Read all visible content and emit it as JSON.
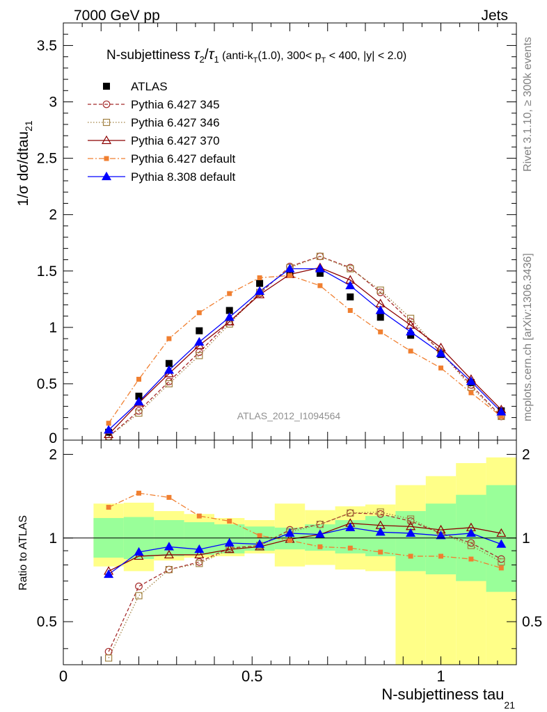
{
  "header": {
    "left": "7000 GeV pp",
    "right": "Jets"
  },
  "side_labels": {
    "rivet": "Rivet 3.1.10, ≥ 300k events",
    "mcplots": "mcplots.cern.ch [arXiv:1306.3436]"
  },
  "watermark": "ATLAS_2012_I1094564",
  "chart_data": [
    {
      "type": "line",
      "panel": "main",
      "title": "N-subjettiness τ2/τ1 (anti-kT(1.0), 300< pT < 400, |y| < 2.0)",
      "title_parts": {
        "lead": "N-subjettiness ",
        "tau": "τ",
        "sub2": "2",
        "slash": "/",
        "sub1": "1",
        "cond_a": " (anti-k",
        "subT": "T",
        "cond_b": "(1.0), 300< p",
        "cond_c": " < 400, |y| < 2.0)"
      },
      "ylabel": "1/σ dσ/dtau21",
      "ylabel_parts": {
        "main": "1/σ dσ/dtau",
        "sub": "21"
      },
      "xlim": [
        0,
        1.2
      ],
      "ylim": [
        0,
        3.7
      ],
      "yticks": [
        0,
        0.5,
        1,
        1.5,
        2,
        2.5,
        3,
        3.5
      ],
      "ytick_labels": [
        "0",
        "0.5",
        "1",
        "1.5",
        "2",
        "2.5",
        "3",
        "3.5"
      ],
      "x": [
        0.12,
        0.2,
        0.28,
        0.36,
        0.44,
        0.52,
        0.6,
        0.68,
        0.76,
        0.84,
        0.92,
        1.0,
        1.08,
        1.16
      ],
      "legend_position": "top-left",
      "series": [
        {
          "name": "ATLAS",
          "color": "#000000",
          "marker": "square-filled",
          "line": "none",
          "values": [
            0.07,
            0.39,
            0.68,
            0.97,
            1.15,
            1.39,
            1.49,
            1.48,
            1.27,
            1.09,
            0.93,
            0.76,
            0.51,
            0.26
          ]
        },
        {
          "name": "Pythia 6.427 345",
          "color": "#a52a2a",
          "marker": "circle-open",
          "line": "dashed",
          "values": [
            0.03,
            0.26,
            0.52,
            0.78,
            1.05,
            1.3,
            1.54,
            1.63,
            1.53,
            1.31,
            1.05,
            0.78,
            0.49,
            0.21
          ]
        },
        {
          "name": "Pythia 6.427 346",
          "color": "#a08040",
          "marker": "square-open",
          "line": "dotted",
          "values": [
            0.03,
            0.24,
            0.5,
            0.75,
            1.03,
            1.31,
            1.53,
            1.63,
            1.52,
            1.33,
            1.08,
            0.78,
            0.47,
            0.21
          ]
        },
        {
          "name": "Pythia 6.427 370",
          "color": "#8b0000",
          "marker": "triangle-open",
          "line": "solid",
          "values": [
            0.05,
            0.33,
            0.59,
            0.84,
            1.05,
            1.29,
            1.47,
            1.53,
            1.42,
            1.21,
            1.02,
            0.82,
            0.54,
            0.27
          ]
        },
        {
          "name": "Pythia 6.427 default",
          "color": "#f07f30",
          "marker": "square-filled-small",
          "line": "dashdot",
          "values": [
            0.15,
            0.54,
            0.9,
            1.13,
            1.3,
            1.44,
            1.46,
            1.37,
            1.15,
            0.96,
            0.79,
            0.64,
            0.42,
            0.21
          ]
        },
        {
          "name": "Pythia 8.308 default",
          "color": "#0000ff",
          "marker": "triangle-filled",
          "line": "solid",
          "values": [
            0.09,
            0.34,
            0.62,
            0.87,
            1.09,
            1.32,
            1.52,
            1.52,
            1.37,
            1.15,
            0.96,
            0.77,
            0.52,
            0.25
          ]
        }
      ]
    },
    {
      "type": "line",
      "panel": "ratio",
      "ylabel": "Ratio to ATLAS",
      "xlabel": "N-subjettiness tau21",
      "xlabel_parts": {
        "main": "N-subjettiness tau",
        "sub": "21"
      },
      "xlim": [
        0,
        1.2
      ],
      "ylim": [
        0.35,
        2.25
      ],
      "log_y": true,
      "xticks": [
        0,
        0.5,
        1
      ],
      "xtick_labels": [
        "0",
        "0.5",
        "1"
      ],
      "yticks": [
        0.5,
        1,
        2
      ],
      "ytick_labels_left": [
        "0.5",
        "1",
        "2"
      ],
      "ytick_labels_right": [
        "0.5",
        "1",
        "2"
      ],
      "reference_line": 1,
      "x": [
        0.12,
        0.2,
        0.28,
        0.36,
        0.44,
        0.52,
        0.6,
        0.68,
        0.76,
        0.84,
        0.92,
        1.0,
        1.08,
        1.16
      ],
      "bin_edges": [
        0.08,
        0.16,
        0.24,
        0.32,
        0.4,
        0.48,
        0.56,
        0.64,
        0.72,
        0.8,
        0.88,
        0.96,
        1.04,
        1.12,
        1.2
      ],
      "band_inner": {
        "color": "#99ff99",
        "low": [
          0.85,
          0.84,
          0.86,
          0.87,
          0.88,
          0.9,
          0.91,
          0.9,
          0.88,
          0.86,
          0.76,
          0.74,
          0.7,
          0.64
        ],
        "high": [
          1.18,
          1.19,
          1.16,
          1.14,
          1.12,
          1.1,
          1.09,
          1.12,
          1.16,
          1.2,
          1.25,
          1.33,
          1.43,
          1.55
        ]
      },
      "band_outer": {
        "color": "#ffff88",
        "low": [
          0.79,
          0.76,
          0.83,
          0.85,
          0.86,
          0.88,
          0.79,
          0.8,
          0.77,
          0.76,
          0.33,
          0.33,
          0.33,
          0.33
        ],
        "high": [
          1.33,
          1.34,
          1.25,
          1.22,
          1.18,
          1.16,
          1.33,
          1.26,
          1.3,
          1.32,
          1.55,
          1.67,
          1.86,
          1.95
        ]
      },
      "series": [
        {
          "name": "Pythia 6.427 345",
          "color": "#a52a2a",
          "marker": "circle-open",
          "line": "dashed",
          "values": [
            0.39,
            0.67,
            0.77,
            0.82,
            0.92,
            0.94,
            1.07,
            1.12,
            1.23,
            1.22,
            1.15,
            1.04,
            0.96,
            0.84
          ]
        },
        {
          "name": "Pythia 6.427 346",
          "color": "#a08040",
          "marker": "square-open",
          "line": "dotted",
          "values": [
            0.37,
            0.62,
            0.77,
            0.81,
            0.91,
            0.94,
            1.05,
            1.12,
            1.23,
            1.24,
            1.17,
            1.04,
            0.94,
            0.82
          ]
        },
        {
          "name": "Pythia 6.427 370",
          "color": "#8b0000",
          "marker": "triangle-open",
          "line": "solid",
          "values": [
            0.76,
            0.86,
            0.87,
            0.87,
            0.91,
            0.93,
            0.99,
            1.03,
            1.13,
            1.11,
            1.1,
            1.07,
            1.09,
            1.04
          ]
        },
        {
          "name": "Pythia 6.427 default",
          "color": "#f07f30",
          "marker": "square-filled-small",
          "line": "dashdot",
          "values": [
            1.29,
            1.45,
            1.4,
            1.2,
            1.15,
            1.02,
            0.98,
            0.93,
            0.92,
            0.89,
            0.86,
            0.86,
            0.84,
            0.78
          ]
        },
        {
          "name": "Pythia 8.308 default",
          "color": "#0000ff",
          "marker": "triangle-filled",
          "line": "solid",
          "values": [
            0.74,
            0.89,
            0.93,
            0.91,
            0.96,
            0.95,
            1.04,
            1.03,
            1.09,
            1.05,
            1.04,
            1.02,
            1.04,
            0.95
          ]
        }
      ]
    }
  ]
}
